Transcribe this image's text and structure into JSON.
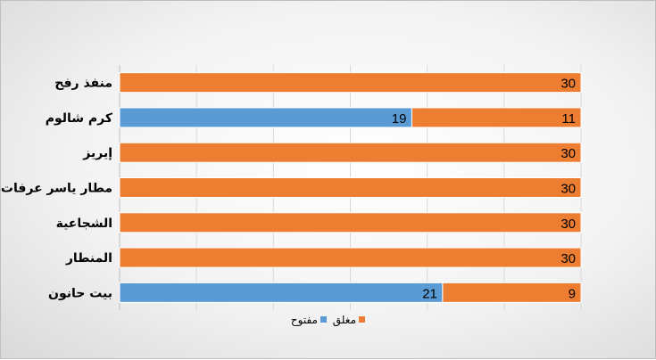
{
  "chart_data": {
    "type": "bar",
    "orientation": "horizontal",
    "stacked": true,
    "categories": [
      "منفذ رفح",
      "كرم شالوم",
      "إيريز",
      "مطار ياسر عرفات الدولي",
      "الشجاعية",
      "المنطار",
      "بيت حانون"
    ],
    "series": [
      {
        "name": "مفتوح",
        "color": "#5b9bd5",
        "values": [
          0,
          19,
          0,
          0,
          0,
          0,
          21
        ]
      },
      {
        "name": "مغلق",
        "color": "#ed7d31",
        "values": [
          30,
          11,
          30,
          30,
          30,
          30,
          9
        ]
      }
    ],
    "xlim": [
      0,
      30
    ],
    "grid": true,
    "legend_position": "bottom"
  }
}
